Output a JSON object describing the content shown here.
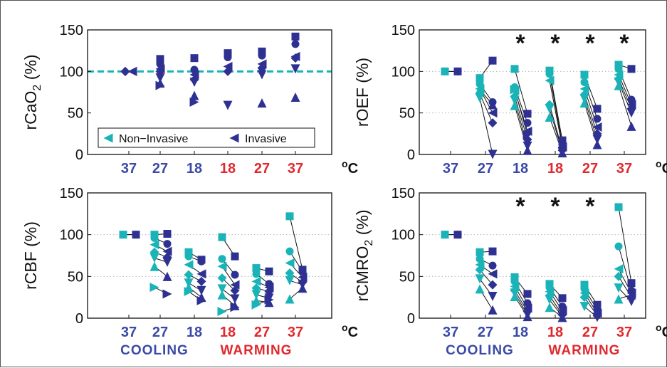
{
  "colors": {
    "noninvasive": "#19b3b8",
    "invasive": "#2e3192",
    "cooling": "#3a49a6",
    "warming": "#e0282e",
    "text": "#111111"
  },
  "x_tick_labels": [
    "37",
    "27",
    "18",
    "18",
    "27",
    "37"
  ],
  "x_tick_phase": [
    "cooling",
    "cooling",
    "cooling",
    "warming",
    "warming",
    "warming"
  ],
  "unit_label": "oC",
  "groups": {
    "cooling": "COOLING",
    "warming": "WARMING"
  },
  "legend": {
    "noninvasive": "Non−Invasive",
    "invasive": "Invasive"
  },
  "chart_data": [
    {
      "type": "scatter",
      "panel": "top-left",
      "ylabel": "rCaO",
      "ylabel_sub": "2",
      "ylabel_unit": " (%)",
      "ylim": [
        0,
        150
      ],
      "yticks": [
        0,
        50,
        100,
        150
      ],
      "grid": false,
      "reference_line": 100,
      "legend_position": "bottom",
      "stars": [],
      "series": [
        {
          "x_index": 0,
          "values": [
            100,
            100,
            100,
            100,
            100,
            100,
            100
          ]
        },
        {
          "x_index": 1,
          "values": [
            115,
            109,
            103,
            100,
            92,
            86,
            83
          ]
        },
        {
          "x_index": 2,
          "values": [
            116,
            102,
            96,
            90,
            87,
            71,
            63
          ]
        },
        {
          "x_index": 3,
          "values": [
            122,
            117,
            106,
            100,
            59
          ]
        },
        {
          "x_index": 4,
          "values": [
            124,
            119,
            109,
            104,
            96,
            62
          ]
        },
        {
          "x_index": 5,
          "values": [
            142,
            133,
            118,
            116,
            103,
            69
          ]
        }
      ]
    },
    {
      "type": "line",
      "panel": "top-right",
      "ylabel": "rOEF",
      "ylabel_sub": "",
      "ylabel_unit": " (%)",
      "ylim": [
        0,
        150
      ],
      "yticks": [
        0,
        50,
        100,
        150
      ],
      "grid": true,
      "stars": [
        2,
        3,
        4,
        5
      ],
      "pairs": [
        {
          "x_index": 0,
          "values": [
            [
              100,
              100
            ],
            [
              100,
              100
            ]
          ]
        },
        {
          "x_index": 1,
          "values": [
            [
              92,
              113
            ],
            [
              85,
              63
            ],
            [
              79,
              50
            ],
            [
              73,
              38
            ],
            [
              68,
              0
            ],
            [
              78,
              60
            ]
          ]
        },
        {
          "x_index": 2,
          "values": [
            [
              103,
              49
            ],
            [
              81,
              38
            ],
            [
              77,
              28
            ],
            [
              70,
              18
            ],
            [
              65,
              10
            ],
            [
              59,
              5
            ],
            [
              78,
              24
            ]
          ]
        },
        {
          "x_index": 3,
          "values": [
            [
              101,
              17
            ],
            [
              97,
              12
            ],
            [
              89,
              9
            ],
            [
              60,
              5
            ],
            [
              55,
              3
            ],
            [
              45,
              2
            ]
          ]
        },
        {
          "x_index": 4,
          "values": [
            [
              96,
              55
            ],
            [
              87,
              43
            ],
            [
              79,
              33
            ],
            [
              72,
              25
            ],
            [
              67,
              18
            ],
            [
              62,
              12
            ]
          ]
        },
        {
          "x_index": 5,
          "values": [
            [
              108,
              103
            ],
            [
              103,
              66
            ],
            [
              96,
              60
            ],
            [
              91,
              55
            ],
            [
              87,
              50
            ],
            [
              83,
              34
            ]
          ]
        }
      ]
    },
    {
      "type": "line",
      "panel": "bottom-left",
      "ylabel": "rCBF",
      "ylabel_sub": "",
      "ylabel_unit": " (%)",
      "ylim": [
        0,
        150
      ],
      "yticks": [
        0,
        50,
        100,
        150
      ],
      "grid": true,
      "stars": [],
      "pairs": [
        {
          "x_index": 0,
          "values": [
            [
              100,
              100
            ],
            [
              100,
              100
            ]
          ]
        },
        {
          "x_index": 1,
          "values": [
            [
              100,
              101
            ],
            [
              96,
              89
            ],
            [
              88,
              80
            ],
            [
              79,
              73
            ],
            [
              72,
              67
            ],
            [
              62,
              50
            ],
            [
              37,
              29
            ]
          ]
        },
        {
          "x_index": 2,
          "values": [
            [
              79,
              70
            ],
            [
              74,
              68
            ],
            [
              64,
              53
            ],
            [
              52,
              44
            ],
            [
              42,
              33
            ],
            [
              37,
              25
            ],
            [
              32,
              21
            ]
          ]
        },
        {
          "x_index": 3,
          "values": [
            [
              97,
              74
            ],
            [
              71,
              52
            ],
            [
              62,
              40
            ],
            [
              48,
              33
            ],
            [
              35,
              23
            ],
            [
              28,
              15
            ],
            [
              8,
              13
            ]
          ]
        },
        {
          "x_index": 4,
          "values": [
            [
              60,
              56
            ],
            [
              53,
              41
            ],
            [
              44,
              37
            ],
            [
              36,
              32
            ],
            [
              28,
              24
            ],
            [
              21,
              19
            ],
            [
              16,
              22
            ]
          ]
        },
        {
          "x_index": 5,
          "values": [
            [
              122,
              58
            ],
            [
              80,
              56
            ],
            [
              66,
              49
            ],
            [
              54,
              43
            ],
            [
              45,
              40
            ],
            [
              23,
              36
            ]
          ]
        }
      ]
    },
    {
      "type": "line",
      "panel": "bottom-right",
      "ylabel": "rCMRO",
      "ylabel_sub": "2",
      "ylabel_unit": " (%)",
      "ylim": [
        0,
        150
      ],
      "yticks": [
        0,
        50,
        100,
        150
      ],
      "grid": true,
      "stars": [
        2,
        3,
        4
      ],
      "pairs": [
        {
          "x_index": 0,
          "values": [
            [
              100,
              100
            ],
            [
              100,
              100
            ]
          ]
        },
        {
          "x_index": 1,
          "values": [
            [
              79,
              80
            ],
            [
              71,
              63
            ],
            [
              64,
              53
            ],
            [
              58,
              40
            ],
            [
              47,
              26
            ],
            [
              35,
              10
            ]
          ]
        },
        {
          "x_index": 2,
          "values": [
            [
              49,
              29
            ],
            [
              44,
              18
            ],
            [
              38,
              12
            ],
            [
              33,
              8
            ],
            [
              30,
              4
            ],
            [
              26,
              2
            ]
          ]
        },
        {
          "x_index": 3,
          "values": [
            [
              41,
              24
            ],
            [
              37,
              14
            ],
            [
              32,
              9
            ],
            [
              27,
              4
            ],
            [
              22,
              2
            ],
            [
              13,
              1
            ]
          ]
        },
        {
          "x_index": 4,
          "values": [
            [
              40,
              16
            ],
            [
              35,
              10
            ],
            [
              30,
              6
            ],
            [
              25,
              3
            ],
            [
              14,
              1
            ]
          ]
        },
        {
          "x_index": 5,
          "values": [
            [
              133,
              42
            ],
            [
              86,
              33
            ],
            [
              59,
              30
            ],
            [
              50,
              25
            ],
            [
              36,
              20
            ],
            [
              23,
              28
            ]
          ]
        }
      ]
    }
  ]
}
